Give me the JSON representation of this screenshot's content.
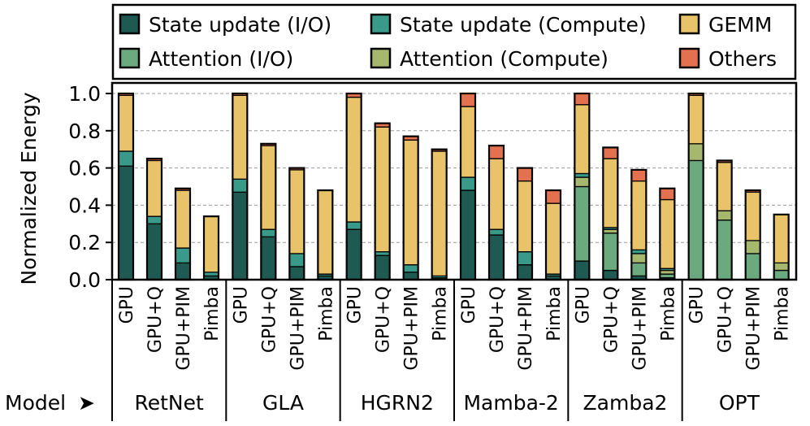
{
  "chart_data": {
    "type": "bar",
    "stacked": true,
    "ylabel": "Normalized Energy",
    "ylim": [
      0,
      1.0
    ],
    "yticks": [
      "0.0",
      "0.2",
      "0.4",
      "0.6",
      "0.8",
      "1.0"
    ],
    "model_axis_label": "Model",
    "model_arrow": "➤",
    "bar_labels": [
      "GPU",
      "GPU+Q",
      "GPU+PIM",
      "Pimba"
    ],
    "legend": [
      {
        "name": "State update (I/O)",
        "color": "#1e5a52"
      },
      {
        "name": "State update (Compute)",
        "color": "#3a9a8a"
      },
      {
        "name": "GEMM",
        "color": "#e8c36a"
      },
      {
        "name": "Attention (I/O)",
        "color": "#6aaa7e"
      },
      {
        "name": "Attention (Compute)",
        "color": "#a6b86e"
      },
      {
        "name": "Others",
        "color": "#e3714f"
      }
    ],
    "stack_order": [
      "State update (I/O)",
      "Attention (I/O)",
      "Attention (Compute)",
      "State update (Compute)",
      "GEMM",
      "Others"
    ],
    "groups": [
      {
        "model": "RetNet",
        "bars": [
          {
            "label": "GPU",
            "values": {
              "State update (I/O)": 0.61,
              "State update (Compute)": 0.08,
              "GEMM": 0.3,
              "Others": 0.01
            }
          },
          {
            "label": "GPU+Q",
            "values": {
              "State update (I/O)": 0.3,
              "State update (Compute)": 0.04,
              "GEMM": 0.3,
              "Others": 0.01
            }
          },
          {
            "label": "GPU+PIM",
            "values": {
              "State update (I/O)": 0.09,
              "State update (Compute)": 0.08,
              "GEMM": 0.31,
              "Others": 0.01
            }
          },
          {
            "label": "Pimba",
            "values": {
              "State update (I/O)": 0.02,
              "State update (Compute)": 0.02,
              "GEMM": 0.3,
              "Others": 0.0
            }
          }
        ]
      },
      {
        "model": "GLA",
        "bars": [
          {
            "label": "GPU",
            "values": {
              "State update (I/O)": 0.47,
              "State update (Compute)": 0.07,
              "GEMM": 0.45,
              "Others": 0.01
            }
          },
          {
            "label": "GPU+Q",
            "values": {
              "State update (I/O)": 0.23,
              "State update (Compute)": 0.04,
              "GEMM": 0.45,
              "Others": 0.01
            }
          },
          {
            "label": "GPU+PIM",
            "values": {
              "State update (I/O)": 0.07,
              "State update (Compute)": 0.07,
              "GEMM": 0.45,
              "Others": 0.01
            }
          },
          {
            "label": "Pimba",
            "values": {
              "State update (I/O)": 0.02,
              "State update (Compute)": 0.01,
              "GEMM": 0.45,
              "Others": 0.0
            }
          }
        ]
      },
      {
        "model": "HGRN2",
        "bars": [
          {
            "label": "GPU",
            "values": {
              "State update (I/O)": 0.27,
              "State update (Compute)": 0.04,
              "GEMM": 0.67,
              "Others": 0.02
            }
          },
          {
            "label": "GPU+Q",
            "values": {
              "State update (I/O)": 0.13,
              "State update (Compute)": 0.02,
              "GEMM": 0.67,
              "Others": 0.02
            }
          },
          {
            "label": "GPU+PIM",
            "values": {
              "State update (I/O)": 0.04,
              "State update (Compute)": 0.04,
              "GEMM": 0.67,
              "Others": 0.02
            }
          },
          {
            "label": "Pimba",
            "values": {
              "State update (I/O)": 0.01,
              "State update (Compute)": 0.01,
              "GEMM": 0.67,
              "Others": 0.01
            }
          }
        ]
      },
      {
        "model": "Mamba-2",
        "bars": [
          {
            "label": "GPU",
            "values": {
              "State update (I/O)": 0.48,
              "State update (Compute)": 0.07,
              "GEMM": 0.38,
              "Others": 0.07
            }
          },
          {
            "label": "GPU+Q",
            "values": {
              "State update (I/O)": 0.24,
              "State update (Compute)": 0.03,
              "GEMM": 0.38,
              "Others": 0.07
            }
          },
          {
            "label": "GPU+PIM",
            "values": {
              "State update (I/O)": 0.08,
              "State update (Compute)": 0.07,
              "GEMM": 0.38,
              "Others": 0.07
            }
          },
          {
            "label": "Pimba",
            "values": {
              "State update (I/O)": 0.02,
              "State update (Compute)": 0.01,
              "GEMM": 0.38,
              "Others": 0.07
            }
          }
        ]
      },
      {
        "model": "Zamba2",
        "bars": [
          {
            "label": "GPU",
            "values": {
              "State update (I/O)": 0.1,
              "State update (Compute)": 0.02,
              "Attention (I/O)": 0.4,
              "Attention (Compute)": 0.05,
              "GEMM": 0.37,
              "Others": 0.06
            }
          },
          {
            "label": "GPU+Q",
            "values": {
              "State update (I/O)": 0.05,
              "State update (Compute)": 0.01,
              "Attention (I/O)": 0.2,
              "Attention (Compute)": 0.02,
              "GEMM": 0.37,
              "Others": 0.06
            }
          },
          {
            "label": "GPU+PIM",
            "values": {
              "State update (I/O)": 0.02,
              "State update (Compute)": 0.02,
              "Attention (I/O)": 0.07,
              "Attention (Compute)": 0.05,
              "GEMM": 0.37,
              "Others": 0.06
            }
          },
          {
            "label": "Pimba",
            "values": {
              "State update (I/O)": 0.01,
              "State update (Compute)": 0.01,
              "Attention (I/O)": 0.02,
              "Attention (Compute)": 0.02,
              "GEMM": 0.37,
              "Others": 0.06
            }
          }
        ]
      },
      {
        "model": "OPT",
        "bars": [
          {
            "label": "GPU",
            "values": {
              "Attention (I/O)": 0.64,
              "Attention (Compute)": 0.09,
              "GEMM": 0.26,
              "Others": 0.01
            }
          },
          {
            "label": "GPU+Q",
            "values": {
              "Attention (I/O)": 0.32,
              "Attention (Compute)": 0.05,
              "GEMM": 0.26,
              "Others": 0.01
            }
          },
          {
            "label": "GPU+PIM",
            "values": {
              "Attention (I/O)": 0.14,
              "Attention (Compute)": 0.07,
              "GEMM": 0.26,
              "Others": 0.01
            }
          },
          {
            "label": "Pimba",
            "values": {
              "Attention (I/O)": 0.05,
              "Attention (Compute)": 0.04,
              "GEMM": 0.26,
              "Others": 0.0
            }
          }
        ]
      }
    ]
  }
}
